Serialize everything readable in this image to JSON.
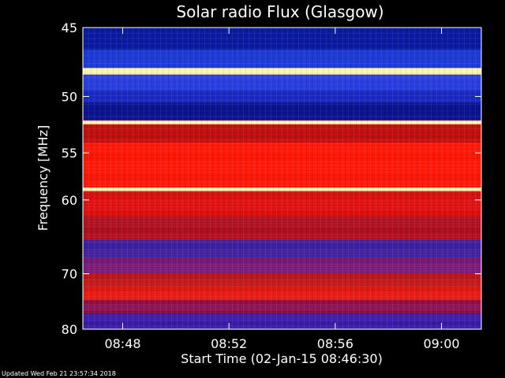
{
  "chart_data": {
    "type": "heatmap",
    "title": "Solar radio Flux (Glasgow)",
    "xlabel": "Start Time (02-Jan-15 08:46:30)",
    "ylabel": "Frequency [MHz]",
    "footer": "Updated Wed Feb 21 23:57:34 2018",
    "x_ticks": [
      "08:48",
      "08:52",
      "08:56",
      "09:00"
    ],
    "x_tick_minutes": [
      1.5,
      5.5,
      9.5,
      13.5
    ],
    "x_range_minutes": [
      0,
      15
    ],
    "y_ticks": [
      45,
      50,
      55,
      60,
      70,
      80
    ],
    "y_range": [
      45,
      80
    ],
    "y_scale": "reciprocal",
    "bands": [
      {
        "from": 45.0,
        "to": 46.5,
        "color": "#0a1aa0"
      },
      {
        "from": 46.5,
        "to": 47.8,
        "color": "#1e3cd8"
      },
      {
        "from": 47.8,
        "to": 48.3,
        "color": "#f7f0a0"
      },
      {
        "from": 48.3,
        "to": 49.5,
        "color": "#2a40e0"
      },
      {
        "from": 49.5,
        "to": 50.5,
        "color": "#1828c0"
      },
      {
        "from": 50.5,
        "to": 52.0,
        "color": "#0c1490"
      },
      {
        "from": 52.0,
        "to": 52.3,
        "color": "#ff9a70"
      },
      {
        "from": 52.3,
        "to": 54.0,
        "color": "#c01010"
      },
      {
        "from": 54.0,
        "to": 58.6,
        "color": "#ff1808"
      },
      {
        "from": 58.6,
        "to": 59.0,
        "color": "#ffd060"
      },
      {
        "from": 59.0,
        "to": 62.0,
        "color": "#e01010"
      },
      {
        "from": 62.0,
        "to": 65.0,
        "color": "#b01020"
      },
      {
        "from": 65.0,
        "to": 67.5,
        "color": "#4020a0"
      },
      {
        "from": 67.5,
        "to": 70.0,
        "color": "#7a1a78"
      },
      {
        "from": 70.0,
        "to": 72.0,
        "color": "#c01818"
      },
      {
        "from": 72.0,
        "to": 74.5,
        "color": "#e81810"
      },
      {
        "from": 74.5,
        "to": 77.0,
        "color": "#8a1050"
      },
      {
        "from": 77.0,
        "to": 80.0,
        "color": "#3a1aa8"
      }
    ],
    "bright_lines": [
      48.0,
      52.2,
      58.8
    ],
    "grid": false,
    "legend": "none"
  }
}
